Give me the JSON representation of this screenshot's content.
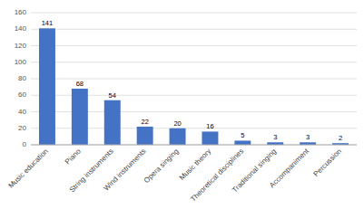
{
  "chart_data": {
    "type": "bar",
    "categories": [
      "Music education",
      "Piano",
      "String instruments",
      "Wind instruments",
      "Opera singing",
      "Music theory",
      "Theoretical disciplines",
      "Traditional singing",
      "Accompaniment",
      "Percussion"
    ],
    "values": [
      141,
      68,
      54,
      22,
      20,
      16,
      5,
      3,
      3,
      2
    ],
    "color": "#4472C4",
    "ylim": [
      0,
      160
    ],
    "yticks": [
      0,
      20,
      40,
      60,
      80,
      100,
      120,
      140,
      160
    ],
    "grid": true,
    "data_labels": true
  }
}
